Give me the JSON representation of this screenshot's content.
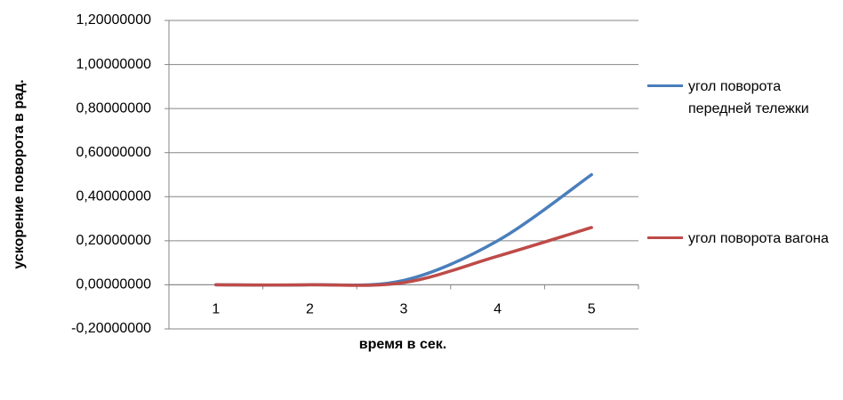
{
  "chart_data": {
    "type": "line",
    "x_label": "время в сек.",
    "y_label": "ускорение поворота в рад.",
    "categories": [
      "1",
      "2",
      "3",
      "4",
      "5"
    ],
    "series": [
      {
        "name": "угол поворота передней тележки",
        "color": "#4a7ebb",
        "values": [
          0,
          0,
          0.02,
          0.2,
          0.5
        ]
      },
      {
        "name": "угол поворота вагона",
        "color": "#be4b48",
        "values": [
          0,
          0,
          0.01,
          0.13,
          0.26
        ]
      }
    ],
    "ylim": [
      -0.2,
      1.2
    ],
    "yticks": [
      {
        "value": -0.2,
        "label": "-0,20000000"
      },
      {
        "value": 0,
        "label": "0,00000000"
      },
      {
        "value": 0.2,
        "label": "0,20000000"
      },
      {
        "value": 0.4,
        "label": "0,40000000"
      },
      {
        "value": 0.6,
        "label": "0,60000000"
      },
      {
        "value": 0.8,
        "label": "0,80000000"
      },
      {
        "value": 1.0,
        "label": "1,00000000"
      },
      {
        "value": 1.2,
        "label": "1,20000000"
      }
    ],
    "grid": true,
    "legend": "right"
  }
}
